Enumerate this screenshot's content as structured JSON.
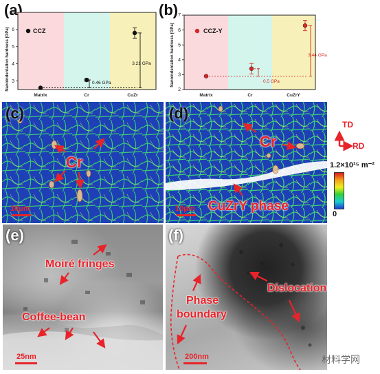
{
  "panel_labels": {
    "a": "(a)",
    "b": "(b)",
    "c": "(c)",
    "d": "(d)",
    "e": "(e)",
    "f": "(f)"
  },
  "chart_data": [
    {
      "type": "scatter",
      "panel": "a",
      "legend": "CCZ",
      "ylabel": "Nanoindentation hardness (GPa)",
      "categories": [
        "Matrix",
        "Cr",
        "CuZr"
      ],
      "values": [
        2.6,
        3.06,
        5.8
      ],
      "errors": [
        0.05,
        0.08,
        0.3
      ],
      "ylim": [
        2.5,
        7
      ],
      "yticks": [
        3,
        4,
        5,
        6,
        7
      ],
      "annotations": [
        "0.46 GPa",
        "3.21 GPa"
      ],
      "region_colors": [
        "#fadadd",
        "#d3f5ec",
        "#f7f0b8"
      ],
      "marker_color": "#111111"
    },
    {
      "type": "scatter",
      "panel": "b",
      "legend": "CCZ-Y",
      "ylabel": "Nanoindentation hardness (GPa)",
      "categories": [
        "Matrix",
        "Cr",
        "CuZrY"
      ],
      "values": [
        2.9,
        3.4,
        6.3
      ],
      "errors": [
        0.05,
        0.35,
        0.35
      ],
      "ylim": [
        2,
        7
      ],
      "yticks": [
        2,
        3,
        4,
        5,
        6,
        7
      ],
      "annotations": [
        "0.5 GPa",
        "3.44 GPa"
      ],
      "region_colors": [
        "#fadadd",
        "#d3f5ec",
        "#f7f0b8"
      ],
      "marker_color": "#d62828"
    }
  ],
  "panel_c": {
    "label_cr": "Cr",
    "scale": "10μm"
  },
  "panel_d": {
    "label_cr": "Cr",
    "label_phase": "CuZrY phase",
    "scale": "10μm"
  },
  "axes_indicator": {
    "td": "TD",
    "rd": "RD"
  },
  "colorbar": {
    "max": "1.2×10¹⁵ m⁻²",
    "min": "0"
  },
  "panel_e": {
    "label_moire": "Moiré fringes",
    "label_coffee": "Coffee-bean",
    "scale": "25nm"
  },
  "panel_f": {
    "label_dislocations": "Dislocations",
    "label_phase": "Phase",
    "label_boundary": "boundary",
    "scale": "200nm"
  },
  "watermark": "材料学网"
}
